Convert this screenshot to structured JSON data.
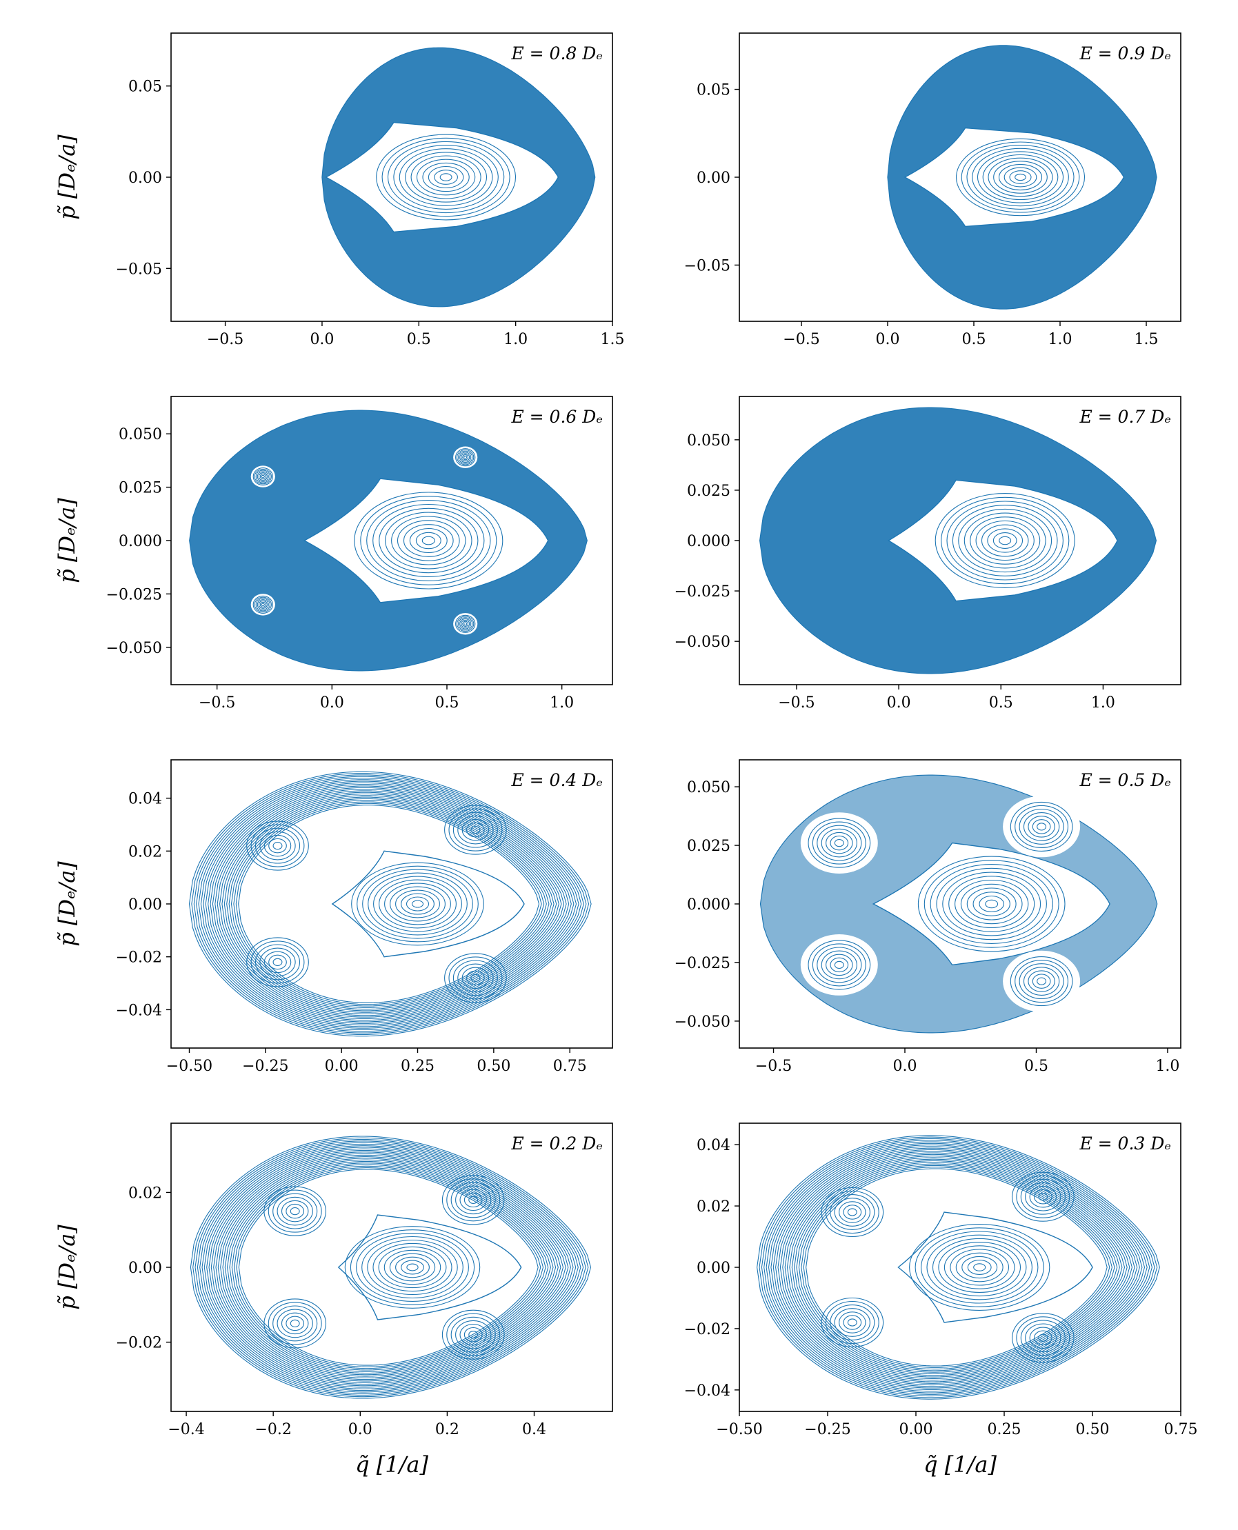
{
  "figure": {
    "ylabel": "p̃ [Dₑ/a]",
    "xlabel": "q̃ [1/a]"
  },
  "style": {
    "marker_color": "#1f77b4",
    "axes_color": "#000000"
  },
  "chart_data": [
    {
      "type": "scatter",
      "title": "",
      "annotation": "E = 0.8 Dₑ",
      "energy_De": 0.8,
      "xlabel": "",
      "ylabel": "p̃ [Dₑ/a]",
      "xlim": [
        -0.78,
        1.5
      ],
      "ylim": [
        -0.079,
        0.079
      ],
      "xticks": [
        -0.5,
        0.0,
        0.5,
        1.0,
        1.5
      ],
      "xtick_labels": [
        "−0.5",
        "0.0",
        "0.5",
        "1.0",
        "1.5"
      ],
      "yticks": [
        -0.05,
        0.0,
        0.05
      ],
      "ytick_labels": [
        "−0.05",
        "0.00",
        "0.05"
      ],
      "region": {
        "q_min": 0.0,
        "q_max": 1.41,
        "p_max": 0.071
      },
      "island": {
        "center_q": 0.64,
        "left_tip_q": 0.02,
        "right_tip_q": 1.22,
        "corner_q": 0.37,
        "corner_p": 0.03
      },
      "satellites": [],
      "regime": "chaotic sea with central regular island"
    },
    {
      "type": "scatter",
      "title": "",
      "annotation": "E = 0.9 Dₑ",
      "energy_De": 0.9,
      "xlabel": "",
      "ylabel": "",
      "xlim": [
        -0.86,
        1.7
      ],
      "ylim": [
        -0.082,
        0.082
      ],
      "xticks": [
        -0.5,
        0.0,
        0.5,
        1.0,
        1.5
      ],
      "xtick_labels": [
        "−0.5",
        "0.0",
        "0.5",
        "1.0",
        "1.5"
      ],
      "yticks": [
        -0.05,
        0.0,
        0.05
      ],
      "ytick_labels": [
        "−0.05",
        "0.00",
        "0.05"
      ],
      "region": {
        "q_min": 0.0,
        "q_max": 1.56,
        "p_max": 0.075
      },
      "island": {
        "center_q": 0.77,
        "left_tip_q": 0.1,
        "right_tip_q": 1.37,
        "corner_q": 0.45,
        "corner_p": 0.028
      },
      "satellites": [],
      "regime": "chaotic sea with central regular island"
    },
    {
      "type": "scatter",
      "title": "",
      "annotation": "E = 0.6 Dₑ",
      "energy_De": 0.6,
      "xlabel": "",
      "ylabel": "p̃ [Dₑ/a]",
      "xlim": [
        -0.7,
        1.22
      ],
      "ylim": [
        -0.0675,
        0.0675
      ],
      "xticks": [
        -0.5,
        0.0,
        0.5,
        1.0
      ],
      "xtick_labels": [
        "−0.5",
        "0.0",
        "0.5",
        "1.0"
      ],
      "yticks": [
        -0.05,
        -0.025,
        0.0,
        0.025,
        0.05
      ],
      "ytick_labels": [
        "−0.050",
        "−0.025",
        "0.000",
        "0.025",
        "0.050"
      ],
      "region": {
        "q_min": -0.62,
        "q_max": 1.11,
        "p_max": 0.061
      },
      "island": {
        "center_q": 0.42,
        "left_tip_q": -0.12,
        "right_tip_q": 0.94,
        "corner_q": 0.21,
        "corner_p": 0.029
      },
      "satellites": [
        [
          -0.3,
          0.03
        ],
        [
          -0.3,
          -0.03
        ],
        [
          0.58,
          0.039
        ],
        [
          0.58,
          -0.039
        ]
      ],
      "regime": "mostly chaotic with resonance islands"
    },
    {
      "type": "scatter",
      "title": "",
      "annotation": "E = 0.7 Dₑ",
      "energy_De": 0.7,
      "xlabel": "",
      "ylabel": "",
      "xlim": [
        -0.78,
        1.38
      ],
      "ylim": [
        -0.0715,
        0.0715
      ],
      "xticks": [
        -0.5,
        0.0,
        0.5,
        1.0
      ],
      "xtick_labels": [
        "−0.5",
        "0.0",
        "0.5",
        "1.0"
      ],
      "yticks": [
        -0.05,
        -0.025,
        0.0,
        0.025,
        0.05
      ],
      "ytick_labels": [
        "−0.050",
        "−0.025",
        "0.000",
        "0.025",
        "0.050"
      ],
      "region": {
        "q_min": -0.68,
        "q_max": 1.26,
        "p_max": 0.066
      },
      "island": {
        "center_q": 0.52,
        "left_tip_q": -0.05,
        "right_tip_q": 1.07,
        "corner_q": 0.28,
        "corner_p": 0.03
      },
      "satellites": [],
      "regime": "chaotic sea with central regular island"
    },
    {
      "type": "scatter",
      "title": "",
      "annotation": "E = 0.4 Dₑ",
      "energy_De": 0.4,
      "xlabel": "",
      "ylabel": "p̃ [Dₑ/a]",
      "xlim": [
        -0.56,
        0.89
      ],
      "ylim": [
        -0.0545,
        0.0545
      ],
      "xticks": [
        -0.5,
        -0.25,
        0.0,
        0.25,
        0.5,
        0.75
      ],
      "xtick_labels": [
        "−0.50",
        "−0.25",
        "0.00",
        "0.25",
        "0.50",
        "0.75"
      ],
      "yticks": [
        -0.04,
        -0.02,
        0.0,
        0.02,
        0.04
      ],
      "ytick_labels": [
        "−0.04",
        "−0.02",
        "0.00",
        "0.02",
        "0.04"
      ],
      "region": {
        "q_min": -0.5,
        "q_max": 0.82,
        "p_max": 0.05
      },
      "island": {
        "center_q": 0.25,
        "left_tip_q": -0.03,
        "right_tip_q": 0.6,
        "corner_q": 0.14,
        "corner_p": 0.02
      },
      "satellites": [
        [
          -0.21,
          0.022
        ],
        [
          -0.21,
          -0.022
        ],
        [
          0.44,
          0.028
        ],
        [
          0.44,
          -0.028
        ]
      ],
      "regime": "regular tori with separatrices"
    },
    {
      "type": "scatter",
      "title": "",
      "annotation": "E = 0.5 Dₑ",
      "energy_De": 0.5,
      "xlabel": "",
      "ylabel": "",
      "xlim": [
        -0.63,
        1.05
      ],
      "ylim": [
        -0.0615,
        0.0615
      ],
      "xticks": [
        -0.5,
        0.0,
        0.5,
        1.0
      ],
      "xtick_labels": [
        "−0.5",
        "0.0",
        "0.5",
        "1.0"
      ],
      "yticks": [
        -0.05,
        -0.025,
        0.0,
        0.025,
        0.05
      ],
      "ytick_labels": [
        "−0.050",
        "−0.025",
        "0.000",
        "0.025",
        "0.050"
      ],
      "region": {
        "q_min": -0.55,
        "q_max": 0.96,
        "p_max": 0.055
      },
      "island": {
        "center_q": 0.33,
        "left_tip_q": -0.12,
        "right_tip_q": 0.78,
        "corner_q": 0.18,
        "corner_p": 0.026
      },
      "satellites": [
        [
          -0.25,
          0.026
        ],
        [
          -0.25,
          -0.026
        ],
        [
          0.52,
          0.033
        ],
        [
          0.52,
          -0.033
        ]
      ],
      "regime": "mixed phase space"
    },
    {
      "type": "scatter",
      "title": "",
      "annotation": "E = 0.2 Dₑ",
      "energy_De": 0.2,
      "xlabel": "q̃ [1/a]",
      "ylabel": "p̃ [Dₑ/a]",
      "xlim": [
        -0.435,
        0.58
      ],
      "ylim": [
        -0.0385,
        0.0385
      ],
      "xticks": [
        -0.4,
        -0.2,
        0.0,
        0.2,
        0.4
      ],
      "xtick_labels": [
        "−0.4",
        "−0.2",
        "0.0",
        "0.2",
        "0.4"
      ],
      "yticks": [
        -0.02,
        0.0,
        0.02
      ],
      "ytick_labels": [
        "−0.02",
        "0.00",
        "0.02"
      ],
      "region": {
        "q_min": -0.39,
        "q_max": 0.53,
        "p_max": 0.035
      },
      "island": {
        "center_q": 0.12,
        "left_tip_q": -0.05,
        "right_tip_q": 0.37,
        "corner_q": 0.04,
        "corner_p": 0.014
      },
      "satellites": [
        [
          -0.15,
          0.015
        ],
        [
          -0.15,
          -0.015
        ],
        [
          0.26,
          0.018
        ],
        [
          0.26,
          -0.018
        ]
      ],
      "regime": "regular tori"
    },
    {
      "type": "scatter",
      "title": "",
      "annotation": "E = 0.3 Dₑ",
      "energy_De": 0.3,
      "xlabel": "q̃ [1/a]",
      "ylabel": "",
      "xlim": [
        -0.5,
        0.75
      ],
      "ylim": [
        -0.047,
        0.047
      ],
      "xticks": [
        -0.5,
        -0.25,
        0.0,
        0.25,
        0.5,
        0.75
      ],
      "xtick_labels": [
        "−0.50",
        "−0.25",
        "0.00",
        "0.25",
        "0.50",
        "0.75"
      ],
      "yticks": [
        -0.04,
        -0.02,
        0.0,
        0.02,
        0.04
      ],
      "ytick_labels": [
        "−0.04",
        "−0.02",
        "0.00",
        "0.02",
        "0.04"
      ],
      "region": {
        "q_min": -0.45,
        "q_max": 0.69,
        "p_max": 0.043
      },
      "island": {
        "center_q": 0.18,
        "left_tip_q": -0.05,
        "right_tip_q": 0.5,
        "corner_q": 0.08,
        "corner_p": 0.018
      },
      "satellites": [
        [
          -0.18,
          0.018
        ],
        [
          -0.18,
          -0.018
        ],
        [
          0.36,
          0.023
        ],
        [
          0.36,
          -0.023
        ]
      ],
      "regime": "regular tori"
    }
  ]
}
